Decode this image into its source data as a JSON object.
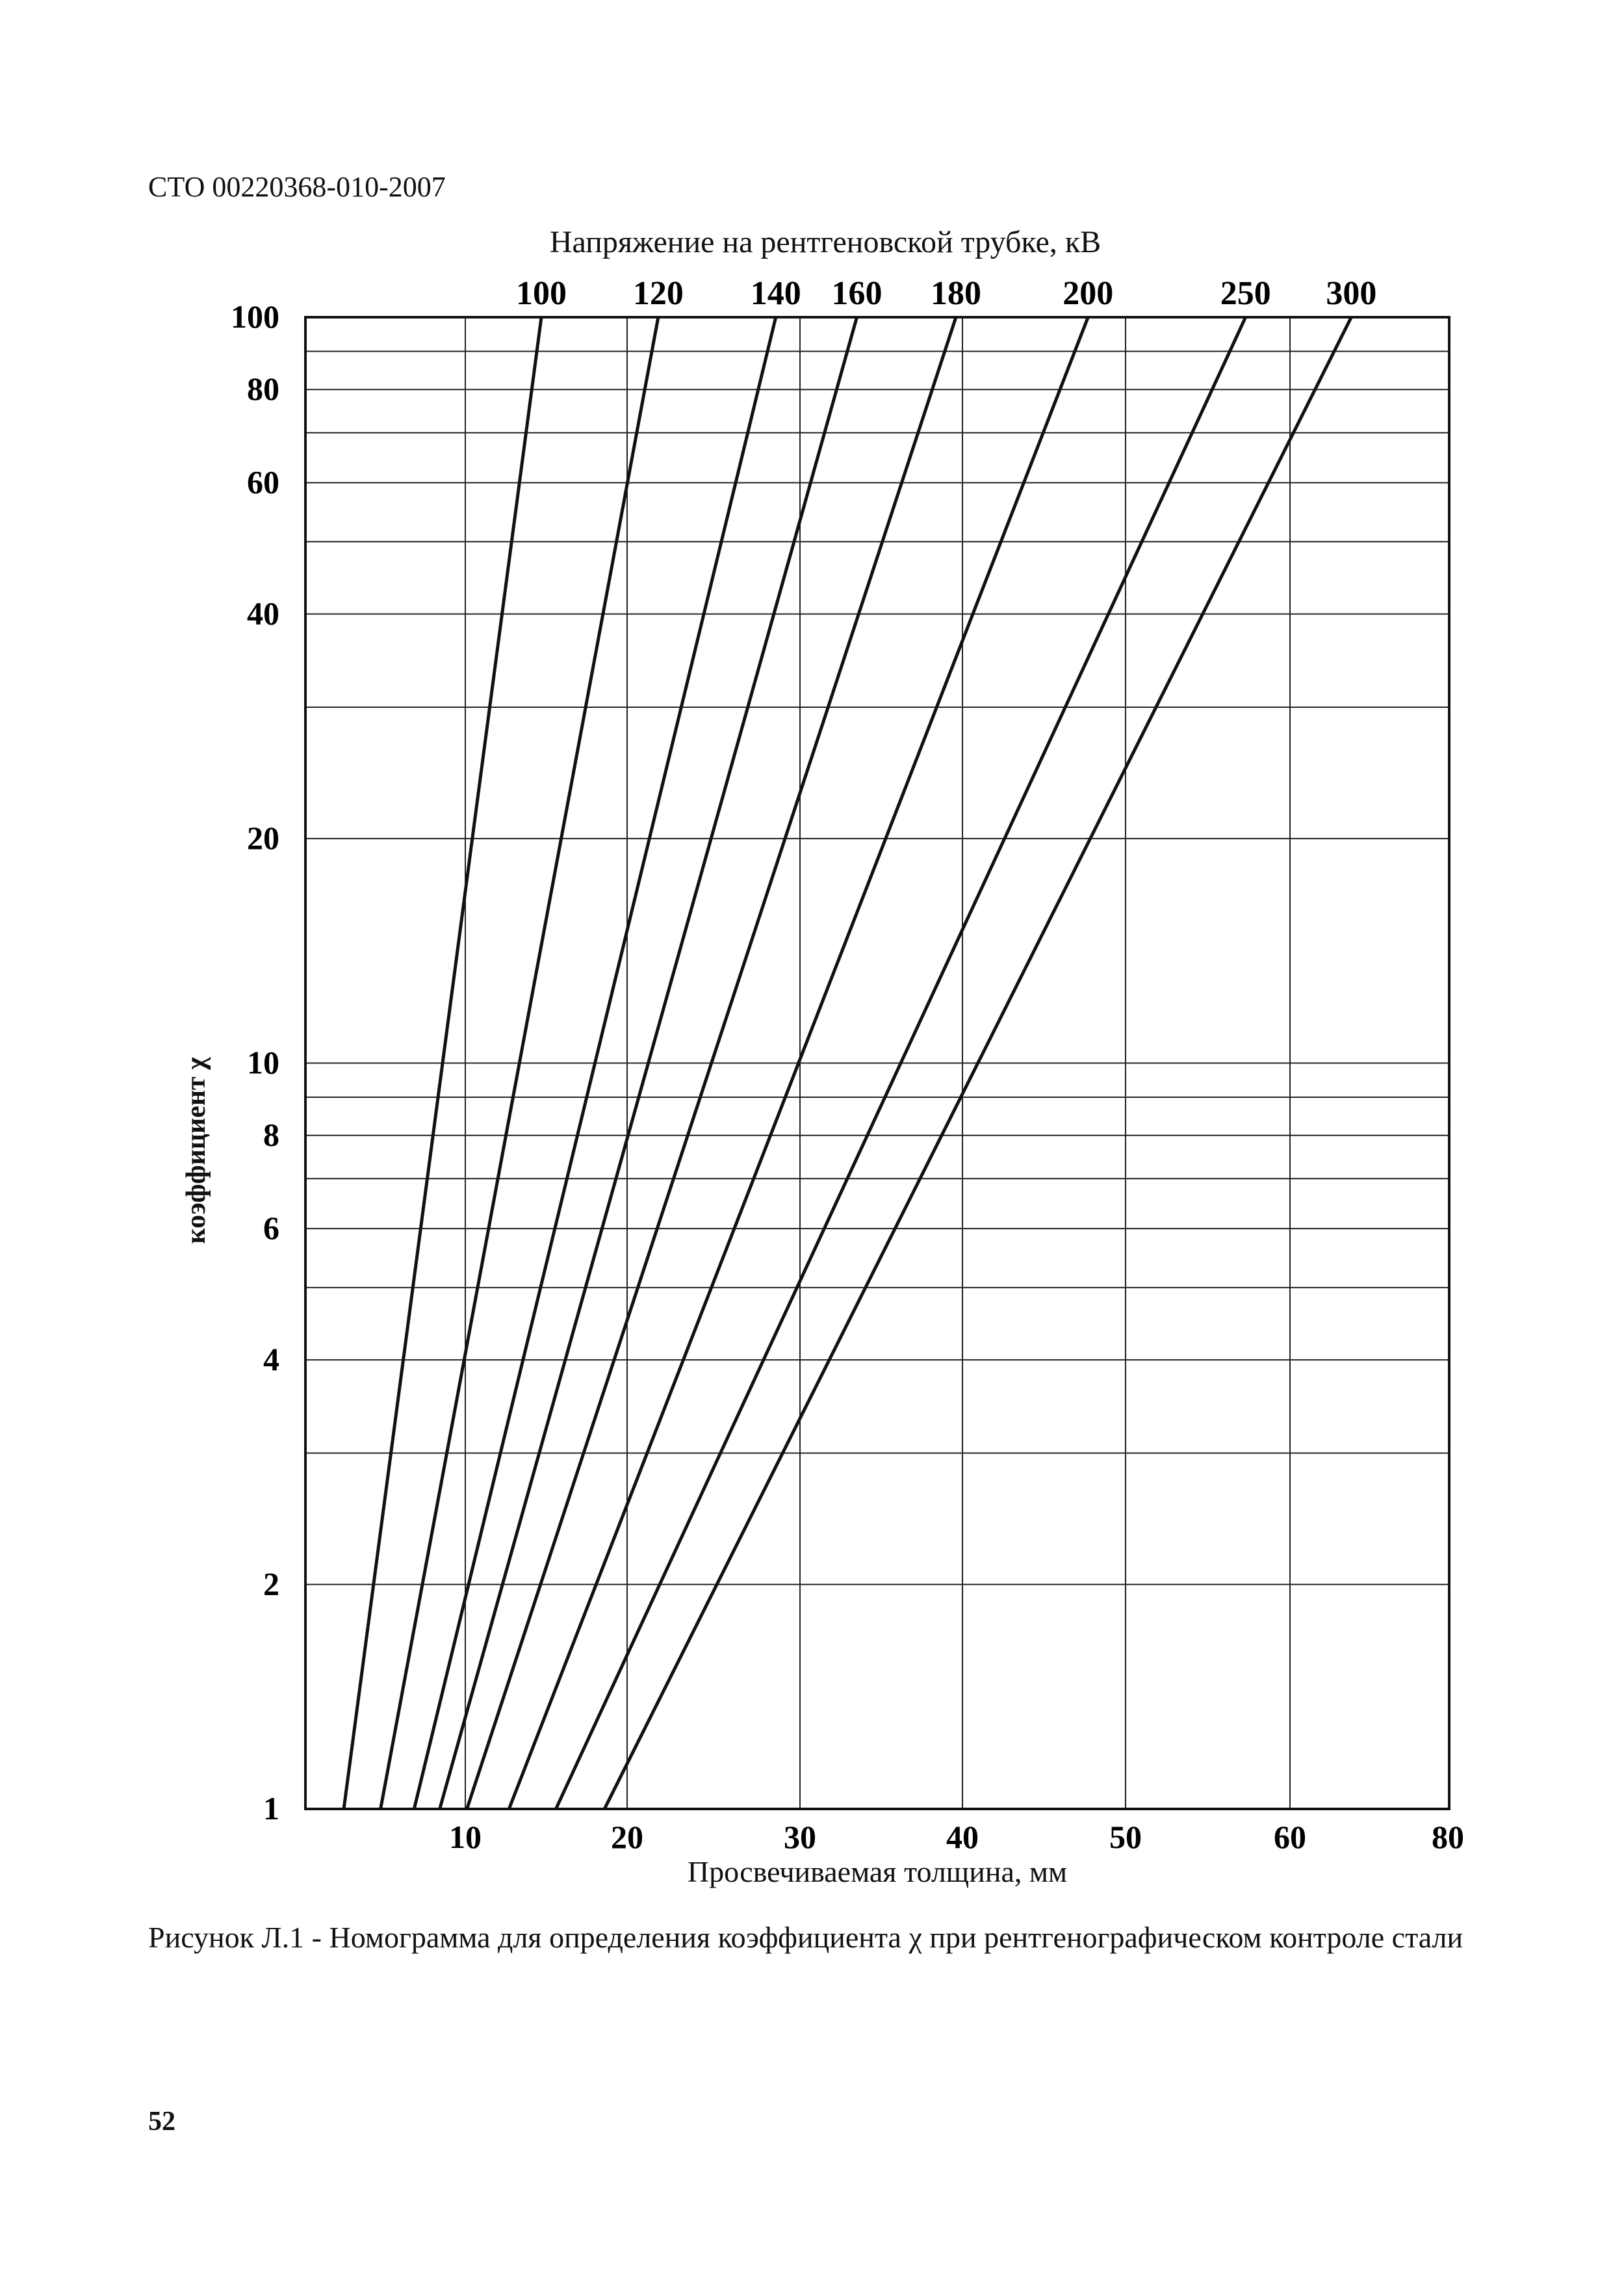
{
  "document": {
    "code": "СТО 00220368-010-2007",
    "page_number": "52"
  },
  "caption": "Рисунок Л.1 - Номограмма для определения коэффициента χ при рентгенографическом контроле стали",
  "chart_data": {
    "type": "line",
    "title": "Напряжение на рентгеновской трубке, кВ",
    "xlabel": "Просвечиваемая толщина, мм",
    "ylabel": "коэффициент χ",
    "x_ticks": [
      10,
      20,
      30,
      40,
      50,
      60,
      80
    ],
    "x_tick_labels": [
      "10",
      "20",
      "30",
      "40",
      "50",
      "60",
      "80"
    ],
    "y_scale": "log",
    "y_ticks": [
      1,
      2,
      4,
      6,
      8,
      10,
      20,
      40,
      60,
      80,
      100
    ],
    "y_tick_labels": [
      "1",
      "2",
      "4",
      "6",
      "8",
      "10",
      "20",
      "40",
      "60",
      "80",
      "100"
    ],
    "y_gridlines": [
      1,
      2,
      3,
      4,
      5,
      6,
      7,
      8,
      9,
      10,
      20,
      30,
      40,
      50,
      60,
      70,
      80,
      90,
      100
    ],
    "ylim": [
      1,
      100
    ],
    "grid": true,
    "series": [
      {
        "name": "100",
        "x": [
          2.4,
          14.7
        ],
        "y": [
          1,
          100
        ]
      },
      {
        "name": "120",
        "x": [
          4.7,
          21.8
        ],
        "y": [
          1,
          100
        ]
      },
      {
        "name": "140",
        "x": [
          6.8,
          28.6
        ],
        "y": [
          1,
          100
        ]
      },
      {
        "name": "160",
        "x": [
          8.4,
          33.5
        ],
        "y": [
          1,
          100
        ]
      },
      {
        "name": "180",
        "x": [
          10.1,
          39.6
        ],
        "y": [
          1,
          100
        ]
      },
      {
        "name": "200",
        "x": [
          12.7,
          47.7
        ],
        "y": [
          1,
          100
        ]
      },
      {
        "name": "250",
        "x": [
          15.6,
          57.3
        ],
        "y": [
          1,
          100
        ]
      },
      {
        "name": "300",
        "x": [
          18.6,
          67.7
        ],
        "y": [
          1,
          100
        ]
      }
    ]
  }
}
